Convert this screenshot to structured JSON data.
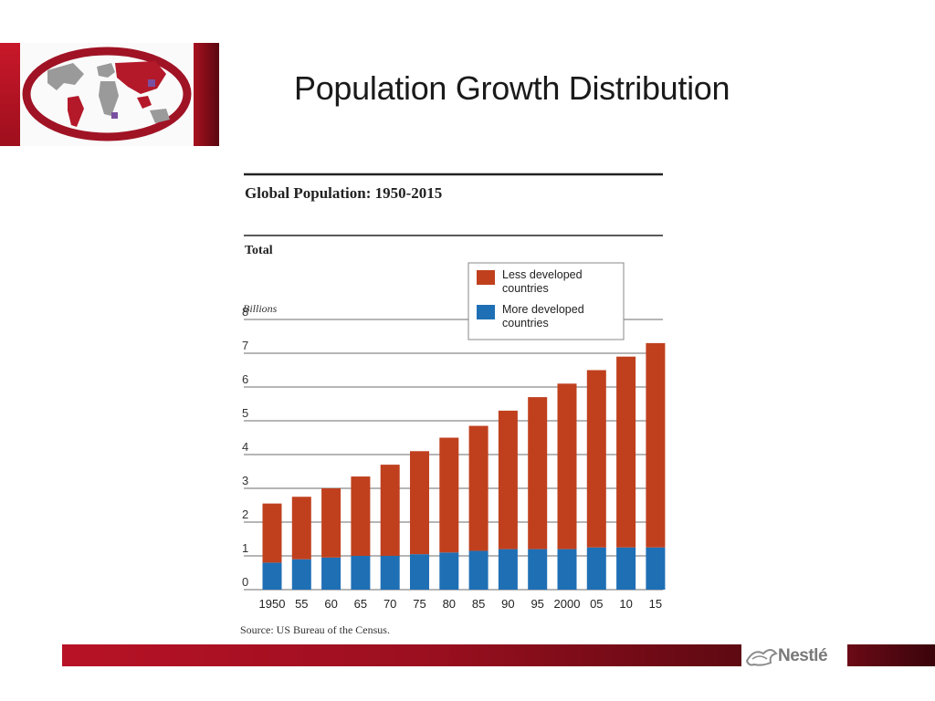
{
  "slide": {
    "title": "Population Growth Distribution"
  },
  "brand": {
    "name": "Nestlé"
  },
  "colors": {
    "less_developed": "#c0401e",
    "more_developed": "#1f6fb5",
    "brand_red": "#b81226"
  },
  "chart_data": {
    "type": "bar",
    "stacked": true,
    "title": "Global Population: 1950-2015",
    "subtitle": "Total",
    "ylabel": "Billions",
    "ylim": [
      0,
      8
    ],
    "yticks": [
      0,
      1,
      2,
      3,
      4,
      5,
      6,
      7,
      8
    ],
    "grid": true,
    "legend_position": "top-right",
    "categories": [
      "1950",
      "55",
      "60",
      "65",
      "70",
      "75",
      "80",
      "85",
      "90",
      "95",
      "2000",
      "05",
      "10",
      "15"
    ],
    "series": [
      {
        "name": "More developed countries",
        "color": "#1f6fb5",
        "values": [
          0.8,
          0.9,
          0.95,
          1.0,
          1.0,
          1.05,
          1.1,
          1.15,
          1.2,
          1.2,
          1.2,
          1.25,
          1.25,
          1.25
        ]
      },
      {
        "name": "Less developed countries",
        "color": "#c0401e",
        "values": [
          1.75,
          1.85,
          2.05,
          2.35,
          2.7,
          3.05,
          3.4,
          3.7,
          4.1,
          4.5,
          4.9,
          5.25,
          5.65,
          6.05
        ]
      }
    ],
    "source": "Source: US Bureau of the Census."
  }
}
